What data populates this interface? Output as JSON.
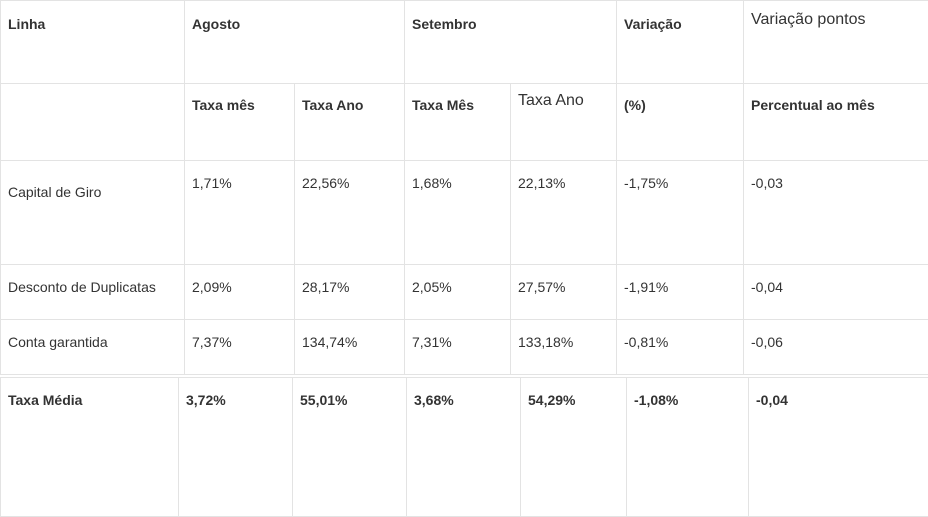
{
  "table": {
    "headers": {
      "linha": "Linha",
      "agosto": "Agosto",
      "setembro": "Setembro",
      "variacao": "Variação",
      "variacao_pontos": "Variação pontos"
    },
    "subheaders": {
      "agosto_taxa_mes": "Taxa mês",
      "agosto_taxa_ano": "Taxa Ano",
      "setembro_taxa_mes": "Taxa Mês",
      "setembro_taxa_ano": "Taxa Ano",
      "variacao_unit": "(%)",
      "pontos_unit": "Percentual ao mês"
    },
    "rows": [
      {
        "linha": "Capital de Giro",
        "ago_mes": "1,71%",
        "ago_ano": "22,56%",
        "set_mes": "1,68%",
        "set_ano": "22,13%",
        "variacao": "-1,75%",
        "pontos": "-0,03"
      },
      {
        "linha": "Desconto de Duplicatas",
        "ago_mes": "2,09%",
        "ago_ano": "28,17%",
        "set_mes": "2,05%",
        "set_ano": "27,57%",
        "variacao": "-1,91%",
        "pontos": "-0,04"
      },
      {
        "linha": "Conta garantida",
        "ago_mes": "7,37%",
        "ago_ano": "134,74%",
        "set_mes": "7,31%",
        "set_ano": "133,18%",
        "variacao": "-0,81%",
        "pontos": "-0,06"
      }
    ]
  },
  "average": {
    "label": "Taxa Média",
    "ago_mes": "3,72%",
    "ago_ano": "55,01%",
    "set_mes": "3,68%",
    "set_ano": "54,29%",
    "variacao": "-1,08%",
    "pontos": "-0,04"
  }
}
